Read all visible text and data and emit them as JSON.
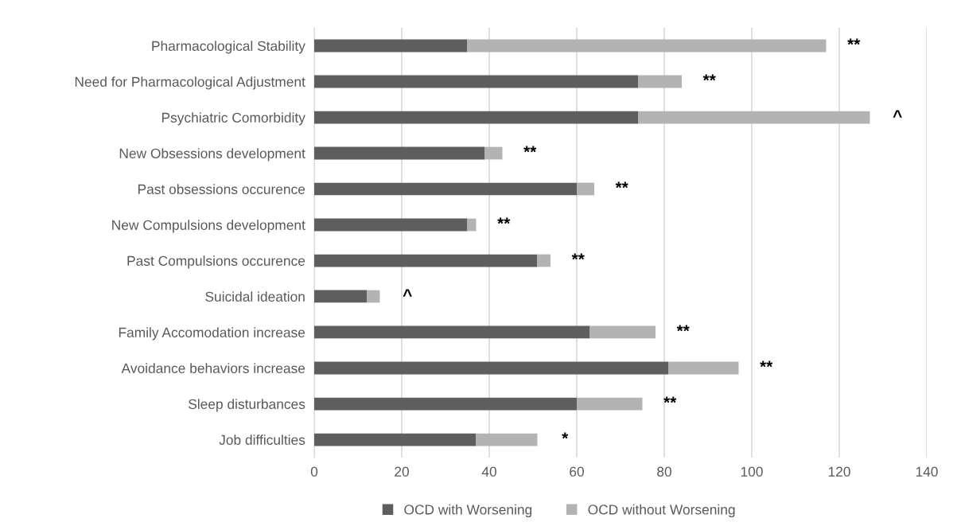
{
  "chart_data": {
    "type": "bar",
    "orientation": "horizontal",
    "stacked": true,
    "categories": [
      "Pharmacological Stability",
      "Need for Pharmacological Adjustment",
      "Psychiatric Comorbidity",
      "New Obsessions development",
      "Past obsessions occurence",
      "New Compulsions development",
      "Past Compulsions occurence",
      "Suicidal ideation",
      "Family Accomodation increase",
      "Avoidance behaviors increase",
      "Sleep disturbances",
      "Job difficulties"
    ],
    "series": [
      {
        "name": "OCD with Worsening",
        "color": "#5e5e5e",
        "values": [
          35,
          74,
          74,
          39,
          60,
          35,
          51,
          12,
          63,
          81,
          60,
          37
        ]
      },
      {
        "name": "OCD without Worsening",
        "color": "#b3b3b3",
        "values": [
          82,
          10,
          53,
          4,
          4,
          2,
          3,
          3,
          15,
          16,
          15,
          14
        ]
      }
    ],
    "xlim": [
      0,
      140
    ],
    "xticks": [
      0,
      20,
      40,
      60,
      80,
      100,
      120,
      140
    ],
    "grid": "x",
    "legend": "bottom",
    "annotations": [
      {
        "text": "**",
        "x": 117,
        "y": "Pharmacological Stability"
      },
      {
        "text": "**",
        "x": 84,
        "y": "Need for Pharmacological Adjustment"
      },
      {
        "text": "^",
        "x": 127,
        "y": "Psychiatric Comorbidity"
      },
      {
        "text": "**",
        "x": 43,
        "y": "New Obsessions development"
      },
      {
        "text": "**",
        "x": 64,
        "y": "Past obsessions occurence"
      },
      {
        "text": "**",
        "x": 37,
        "y": "New Compulsions development"
      },
      {
        "text": "**",
        "x": 54,
        "y": "Past Compulsions occurence"
      },
      {
        "text": "^",
        "x": 15,
        "y": "Suicidal ideation"
      },
      {
        "text": "**",
        "x": 78,
        "y": "Family Accomodation increase"
      },
      {
        "text": "**",
        "x": 97,
        "y": "Avoidance behaviors increase"
      },
      {
        "text": "**",
        "x": 75,
        "y": "Sleep disturbances"
      },
      {
        "text": "*",
        "x": 51,
        "y": "Job difficulties"
      }
    ]
  }
}
